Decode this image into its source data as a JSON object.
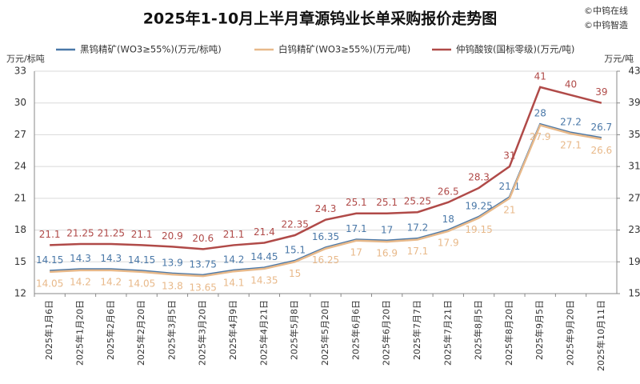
{
  "chart_data": {
    "type": "line",
    "title": "2025年1-10月上半月章源钨业长单采购报价走势图",
    "watermarks": [
      "©中钨在线",
      "©中钨智造"
    ],
    "ylabel": "万元/标吨",
    "y2label": "万元/吨",
    "categories": [
      "2025年1月6日",
      "2025年1月20日",
      "2025年2月6日",
      "2025年2月20日",
      "2025年3月5日",
      "2025年3月20日",
      "2025年4月9日",
      "2025年4月21日",
      "2025年5月8日",
      "2025年5月20日",
      "2025年6月6日",
      "2025年6月20日",
      "2025年7月7日",
      "2025年7月21日",
      "2025年8月5日",
      "2025年8月20日",
      "2025年9月5日",
      "2025年9月20日",
      "2025年10月11日"
    ],
    "series": [
      {
        "name": "黑钨精矿(WO3≥55%)(万元/标吨)",
        "color": "#4a78a8",
        "label_position": "above",
        "values": [
          14.15,
          14.3,
          14.3,
          14.15,
          13.9,
          13.75,
          14.2,
          14.45,
          15.1,
          16.35,
          17.1,
          17,
          17.2,
          18,
          19.25,
          21.1,
          28,
          27.2,
          26.7
        ]
      },
      {
        "name": "白钨精矿(WO3≥55%)(万元/吨)",
        "color": "#e8b98a",
        "label_position": "below",
        "values": [
          14.05,
          14.2,
          14.2,
          14.05,
          13.8,
          13.65,
          14.1,
          14.35,
          15,
          16.25,
          17,
          16.9,
          17.1,
          17.9,
          19.15,
          21,
          27.9,
          27.1,
          26.6
        ]
      },
      {
        "name": "仲钨酸铵(国标零级)(万元/吨)",
        "color": "#b04a48",
        "axis": "y2",
        "label_position": "above",
        "values": [
          21.1,
          21.25,
          21.25,
          21.1,
          20.9,
          20.6,
          21.1,
          21.4,
          22.35,
          24.3,
          25.1,
          25.1,
          25.25,
          26.5,
          28.3,
          31,
          41,
          40,
          39
        ]
      }
    ],
    "ylim": [
      12,
      33
    ],
    "yticks": [
      12,
      15,
      18,
      21,
      24,
      27,
      30,
      33
    ],
    "y2lim": [
      15,
      43
    ],
    "y2ticks": [
      15,
      19,
      23,
      27,
      31,
      35,
      39,
      43
    ],
    "grid": true,
    "legend": "top"
  }
}
